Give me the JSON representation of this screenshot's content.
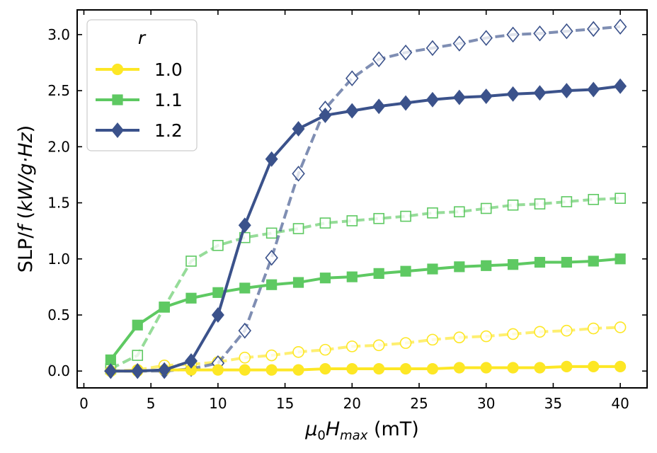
{
  "chart_data": {
    "type": "line",
    "xlabel": "μ0Hmax (mT)",
    "ylabel": "SLP/f (kW/g·Hz)",
    "xlim": [
      -0.5,
      42
    ],
    "ylim": [
      -0.15,
      3.22
    ],
    "xticks": [
      0,
      5,
      10,
      15,
      20,
      25,
      30,
      35,
      40
    ],
    "yticks": [
      0.0,
      0.5,
      1.0,
      1.5,
      2.0,
      2.5,
      3.0
    ],
    "grid": false,
    "legend": {
      "title": "r",
      "placement": "top-left"
    },
    "x": [
      2,
      4,
      6,
      8,
      10,
      12,
      14,
      16,
      18,
      20,
      22,
      24,
      26,
      28,
      30,
      32,
      34,
      36,
      38,
      40
    ],
    "series": [
      {
        "name": "1.0",
        "style": "solid",
        "marker": "circle",
        "color": "#fde725",
        "values": [
          0.0,
          0.0,
          0.01,
          0.01,
          0.01,
          0.01,
          0.01,
          0.01,
          0.02,
          0.02,
          0.02,
          0.02,
          0.02,
          0.03,
          0.03,
          0.03,
          0.03,
          0.04,
          0.04,
          0.04
        ]
      },
      {
        "name": "",
        "style": "dashed",
        "marker": "circle-open",
        "color": "#fde725",
        "values": [
          0.0,
          0.01,
          0.05,
          0.06,
          0.08,
          0.12,
          0.14,
          0.17,
          0.19,
          0.22,
          0.23,
          0.25,
          0.28,
          0.3,
          0.31,
          0.33,
          0.35,
          0.36,
          0.38,
          0.39
        ]
      },
      {
        "name": "1.1",
        "style": "solid",
        "marker": "square",
        "color": "#5ec962",
        "values": [
          0.1,
          0.41,
          0.57,
          0.65,
          0.7,
          0.74,
          0.77,
          0.79,
          0.83,
          0.84,
          0.87,
          0.89,
          0.91,
          0.93,
          0.94,
          0.95,
          0.97,
          0.97,
          0.98,
          1.0
        ]
      },
      {
        "name": "",
        "style": "dashed",
        "marker": "square-open",
        "color": "#5ec962",
        "values": [
          0.02,
          0.14,
          0.57,
          0.98,
          1.12,
          1.19,
          1.23,
          1.27,
          1.32,
          1.34,
          1.36,
          1.38,
          1.41,
          1.42,
          1.45,
          1.48,
          1.49,
          1.51,
          1.53,
          1.54
        ]
      },
      {
        "name": "1.2",
        "style": "solid",
        "marker": "diamond",
        "color": "#3b528b",
        "values": [
          0.0,
          0.0,
          0.01,
          0.09,
          0.5,
          1.3,
          1.89,
          2.16,
          2.28,
          2.32,
          2.36,
          2.39,
          2.42,
          2.44,
          2.45,
          2.47,
          2.48,
          2.5,
          2.51,
          2.54
        ]
      },
      {
        "name": "",
        "style": "dashed",
        "marker": "diamond-open",
        "color": "#3b528b",
        "values": [
          0.0,
          0.0,
          0.0,
          0.02,
          0.07,
          0.36,
          1.01,
          1.76,
          2.34,
          2.61,
          2.78,
          2.84,
          2.88,
          2.92,
          2.97,
          3.0,
          3.01,
          3.03,
          3.05,
          3.07
        ]
      }
    ]
  }
}
